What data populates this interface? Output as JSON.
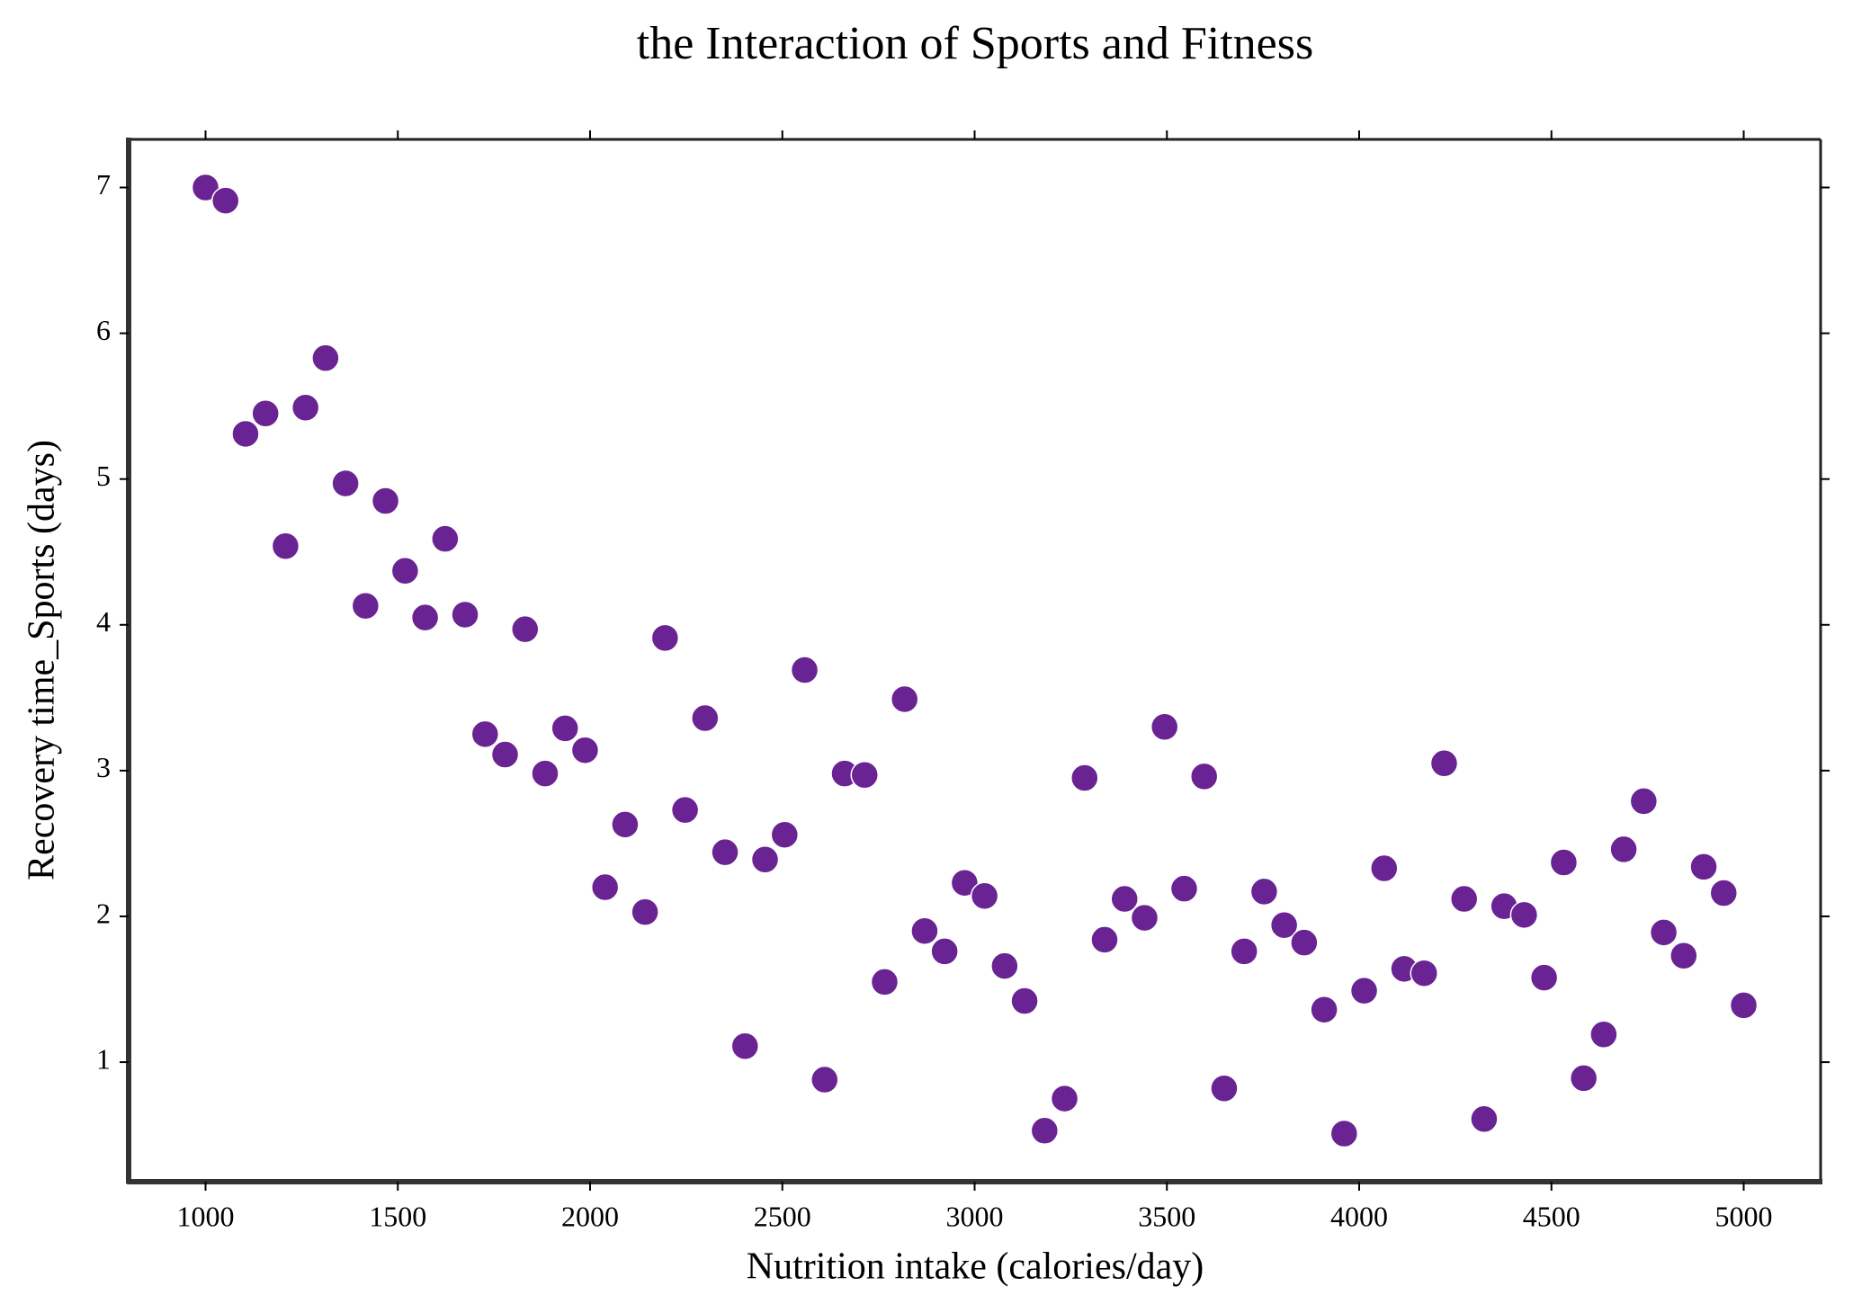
{
  "chart_data": {
    "type": "scatter",
    "title": "the Interaction of Sports and Fitness",
    "x_label": "Nutrition intake (calories/day)",
    "y_label": "Recovery time_Sports (days)",
    "color": "#6a2392",
    "x": [
      1000,
      1052,
      1104,
      1156,
      1208,
      1260,
      1312,
      1364,
      1416,
      1468,
      1519,
      1571,
      1623,
      1675,
      1727,
      1779,
      1831,
      1883,
      1935,
      1987,
      2039,
      2091,
      2143,
      2195,
      2247,
      2299,
      2351,
      2403,
      2455,
      2506,
      2558,
      2610,
      2662,
      2714,
      2766,
      2818,
      2870,
      2922,
      2974,
      3026,
      3078,
      3130,
      3182,
      3234,
      3286,
      3338,
      3390,
      3442,
      3494,
      3545,
      3597,
      3649,
      3701,
      3753,
      3805,
      3857,
      3909,
      3961,
      4013,
      4065,
      4117,
      4169,
      4221,
      4273,
      4325,
      4377,
      4429,
      4481,
      4532,
      4584,
      4636,
      4688,
      4740,
      4792,
      4844,
      4896,
      4948,
      5000
    ],
    "values": [
      7.0,
      6.91,
      5.31,
      5.45,
      4.54,
      5.49,
      5.83,
      4.97,
      4.13,
      4.85,
      4.37,
      4.05,
      4.59,
      4.07,
      3.25,
      3.11,
      3.97,
      2.98,
      3.29,
      3.14,
      2.2,
      2.63,
      2.03,
      3.91,
      2.73,
      3.36,
      2.44,
      1.11,
      2.39,
      2.56,
      3.69,
      0.88,
      2.98,
      2.97,
      1.55,
      3.49,
      1.9,
      1.76,
      2.23,
      2.14,
      1.66,
      1.42,
      0.53,
      0.75,
      2.95,
      1.84,
      2.12,
      1.99,
      3.3,
      2.19,
      2.96,
      0.82,
      1.76,
      2.17,
      1.94,
      1.82,
      1.36,
      0.51,
      1.49,
      2.33,
      1.64,
      1.61,
      3.05,
      2.12,
      0.61,
      2.07,
      2.01,
      1.58,
      2.37,
      0.89,
      1.19,
      2.46,
      2.79,
      1.89,
      1.73,
      2.34,
      2.16,
      1.39
    ],
    "xlim": [
      800,
      5200
    ],
    "ylim": [
      0.18,
      7.33
    ],
    "xticks": [
      1000,
      1500,
      2000,
      2500,
      3000,
      3500,
      4000,
      4500,
      5000
    ],
    "yticks": [
      1,
      2,
      3,
      4,
      5,
      6,
      7
    ]
  }
}
